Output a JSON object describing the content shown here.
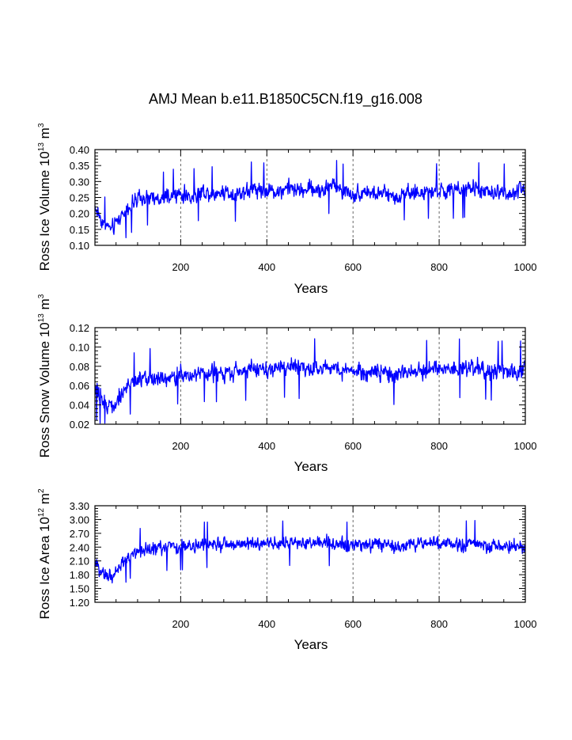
{
  "chart_data": [
    {
      "type": "line",
      "title": "AMJ Mean b.e11.B1850C5CN.f19_g16.008",
      "xlabel": "Years",
      "ylabel_text": "Ross Ice Volume 10",
      "ylabel_exp": "13",
      "ylabel_unit": " m",
      "ylabel_unit_exp": "3",
      "xlim": [
        1,
        1000
      ],
      "ylim": [
        0.1,
        0.4
      ],
      "xticks": [
        200,
        400,
        600,
        800,
        1000
      ],
      "xtick_labels": [
        "200",
        "400",
        "600",
        "800",
        "1000"
      ],
      "yticks": [
        0.1,
        0.15,
        0.2,
        0.25,
        0.3,
        0.35,
        0.4
      ],
      "ytick_labels": [
        "0.10",
        "0.15",
        "0.20",
        "0.25",
        "0.30",
        "0.35",
        "0.40"
      ],
      "grid": "dashed vertical lines at 200, 400, 600, 800",
      "line_color": "#0000ff",
      "series": [
        {
          "name": "Ross Ice Volume",
          "x": [
            1,
            20,
            40,
            60,
            80,
            100,
            125,
            150,
            175,
            200,
            225,
            250,
            275,
            300,
            325,
            350,
            375,
            400,
            425,
            450,
            475,
            500,
            525,
            550,
            575,
            600,
            625,
            650,
            675,
            700,
            725,
            750,
            775,
            800,
            825,
            850,
            875,
            900,
            925,
            950,
            975,
            1000
          ],
          "y": [
            0.22,
            0.17,
            0.15,
            0.19,
            0.22,
            0.24,
            0.25,
            0.24,
            0.25,
            0.26,
            0.25,
            0.27,
            0.26,
            0.27,
            0.26,
            0.27,
            0.28,
            0.27,
            0.27,
            0.28,
            0.27,
            0.28,
            0.27,
            0.29,
            0.27,
            0.26,
            0.27,
            0.26,
            0.26,
            0.25,
            0.27,
            0.26,
            0.27,
            0.27,
            0.27,
            0.27,
            0.28,
            0.27,
            0.26,
            0.27,
            0.26,
            0.28
          ],
          "amplitude": 0.045
        }
      ]
    },
    {
      "type": "line",
      "xlabel": "Years",
      "ylabel_text": "Ross Snow Volume 10",
      "ylabel_exp": "13",
      "ylabel_unit": " m",
      "ylabel_unit_exp": "3",
      "xlim": [
        1,
        1000
      ],
      "ylim": [
        0.02,
        0.12
      ],
      "xticks": [
        200,
        400,
        600,
        800,
        1000
      ],
      "xtick_labels": [
        "200",
        "400",
        "600",
        "800",
        "1000"
      ],
      "yticks": [
        0.02,
        0.04,
        0.06,
        0.08,
        0.1,
        0.12
      ],
      "ytick_labels": [
        "0.02",
        "0.04",
        "0.06",
        "0.08",
        "0.10",
        "0.12"
      ],
      "grid": "dashed vertical lines at 200, 400, 600, 800",
      "line_color": "#0000ff",
      "series": [
        {
          "name": "Ross Snow Volume",
          "x": [
            1,
            20,
            40,
            60,
            80,
            100,
            125,
            150,
            175,
            200,
            225,
            250,
            275,
            300,
            325,
            350,
            375,
            400,
            425,
            450,
            475,
            500,
            525,
            550,
            575,
            600,
            625,
            650,
            675,
            700,
            725,
            750,
            775,
            800,
            825,
            850,
            875,
            900,
            925,
            950,
            975,
            1000
          ],
          "y": [
            0.058,
            0.042,
            0.038,
            0.05,
            0.06,
            0.066,
            0.068,
            0.068,
            0.07,
            0.072,
            0.07,
            0.074,
            0.073,
            0.075,
            0.074,
            0.075,
            0.078,
            0.076,
            0.077,
            0.079,
            0.077,
            0.079,
            0.077,
            0.08,
            0.077,
            0.075,
            0.076,
            0.074,
            0.074,
            0.07,
            0.075,
            0.073,
            0.077,
            0.076,
            0.077,
            0.078,
            0.079,
            0.077,
            0.075,
            0.076,
            0.073,
            0.078
          ],
          "amplitude": 0.016
        }
      ]
    },
    {
      "type": "line",
      "xlabel": "Years",
      "ylabel_text": "Ross Ice Area 10",
      "ylabel_exp": "12",
      "ylabel_unit": " m",
      "ylabel_unit_exp": "2",
      "xlim": [
        1,
        1000
      ],
      "ylim": [
        1.2,
        3.3
      ],
      "xticks": [
        200,
        400,
        600,
        800,
        1000
      ],
      "xtick_labels": [
        "200",
        "400",
        "600",
        "800",
        "1000"
      ],
      "yticks": [
        1.2,
        1.5,
        1.8,
        2.1,
        2.4,
        2.7,
        3.0,
        3.3
      ],
      "ytick_labels": [
        "1.20",
        "1.50",
        "1.80",
        "2.10",
        "2.40",
        "2.70",
        "3.00",
        "3.30"
      ],
      "grid": "dashed vertical lines at 200, 400, 600, 800",
      "line_color": "#0000ff",
      "series": [
        {
          "name": "Ross Ice Area",
          "x": [
            1,
            20,
            40,
            60,
            80,
            100,
            125,
            150,
            175,
            200,
            225,
            250,
            275,
            300,
            325,
            350,
            375,
            400,
            425,
            450,
            475,
            500,
            525,
            550,
            575,
            600,
            625,
            650,
            675,
            700,
            725,
            750,
            775,
            800,
            825,
            850,
            875,
            900,
            925,
            950,
            975,
            1000
          ],
          "y": [
            2.05,
            1.8,
            1.75,
            2.0,
            2.2,
            2.3,
            2.35,
            2.35,
            2.4,
            2.4,
            2.4,
            2.45,
            2.45,
            2.45,
            2.45,
            2.45,
            2.5,
            2.45,
            2.45,
            2.5,
            2.45,
            2.5,
            2.45,
            2.5,
            2.45,
            2.45,
            2.45,
            2.45,
            2.45,
            2.4,
            2.45,
            2.45,
            2.5,
            2.45,
            2.45,
            2.45,
            2.5,
            2.45,
            2.4,
            2.45,
            2.4,
            2.45
          ],
          "amplitude": 0.26
        }
      ]
    }
  ]
}
